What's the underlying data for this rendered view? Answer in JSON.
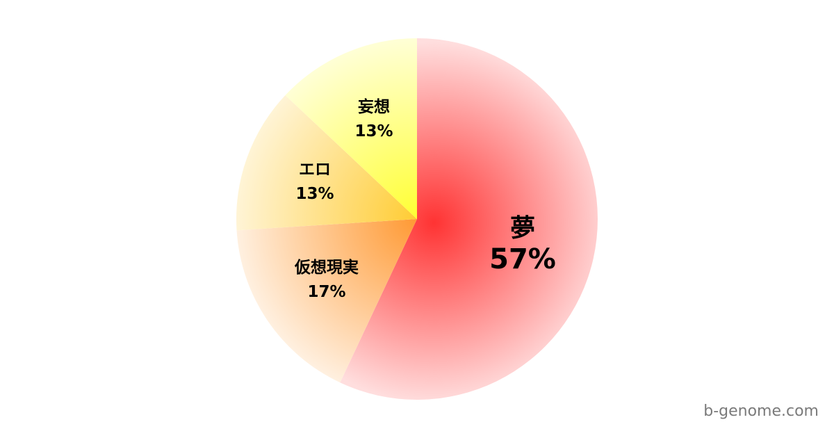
{
  "chart_data": {
    "type": "pie",
    "start": "top",
    "direction": "clockwise",
    "slices": [
      {
        "label": "夢",
        "value": 57,
        "display": "57%",
        "color_center": "#ff3333",
        "color_edge": "#ffdede"
      },
      {
        "label": "仮想現実",
        "value": 17,
        "display": "17%",
        "color_center": "#ff9933",
        "color_edge": "#fff0e0"
      },
      {
        "label": "エロ",
        "value": 13,
        "display": "13%",
        "color_center": "#ffcc33",
        "color_edge": "#fff4d6"
      },
      {
        "label": "妄想",
        "value": 13,
        "display": "13%",
        "color_center": "#ffff33",
        "color_edge": "#ffffd6"
      }
    ]
  },
  "watermark": "b-genome.com"
}
